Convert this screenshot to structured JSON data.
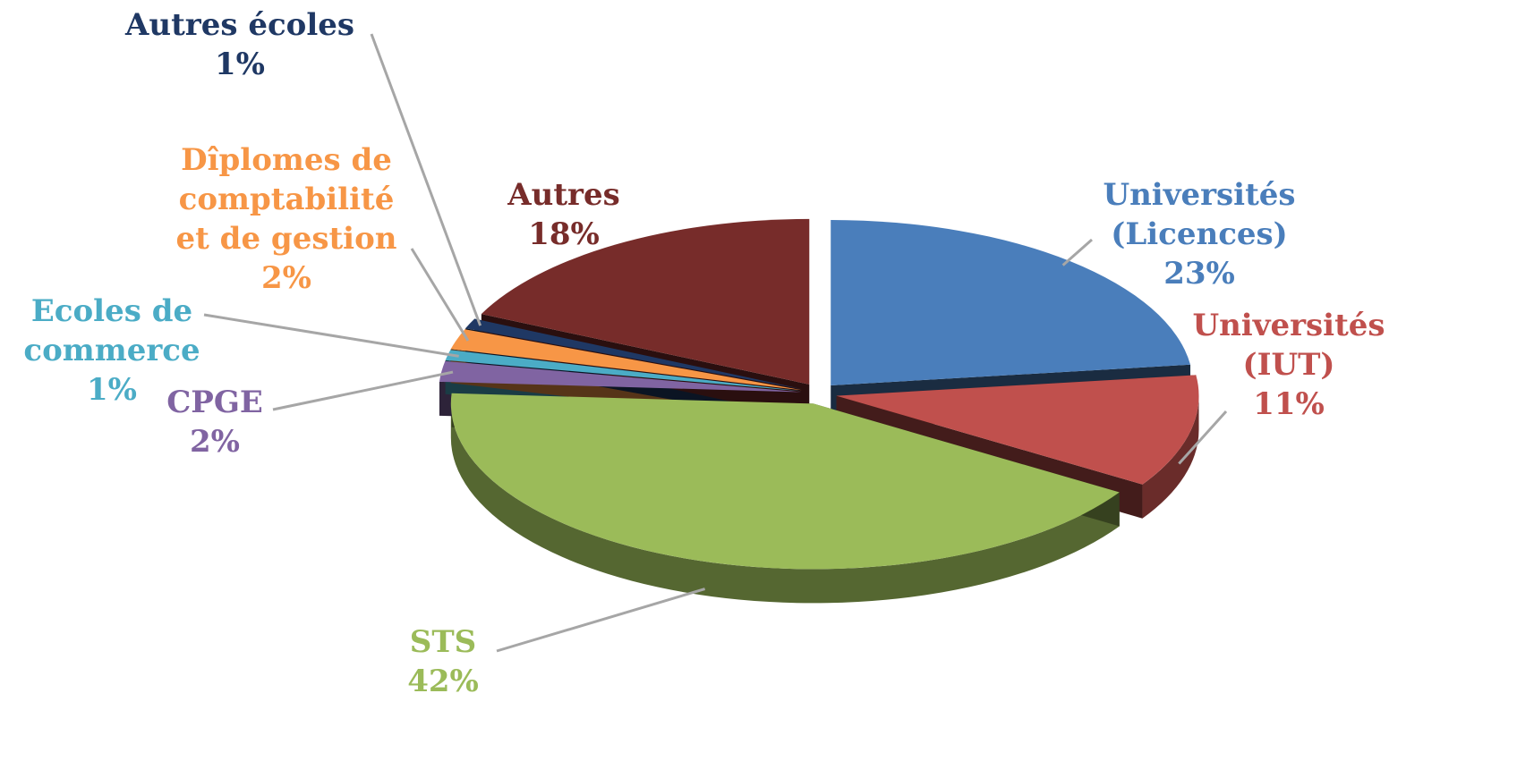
{
  "chart_data": {
    "type": "pie3d",
    "categories": [
      "Universités (Licences)",
      "Universités (IUT)",
      "STS",
      "CPGE",
      "Ecoles de commerce",
      "Dîplomes de comptabilité et de gestion",
      "Autres écoles",
      "Autres"
    ],
    "values": [
      23,
      11,
      42,
      2,
      1,
      2,
      1,
      18
    ],
    "value_labels": [
      "23%",
      "11%",
      "42%",
      "2%",
      "1%",
      "2%",
      "1%",
      "18%"
    ],
    "colors": [
      "#4a7ebb",
      "#c0504d",
      "#9bbb59",
      "#8064a2",
      "#4bacc6",
      "#f79646",
      "#1f3864",
      "#772c2a"
    ]
  }
}
